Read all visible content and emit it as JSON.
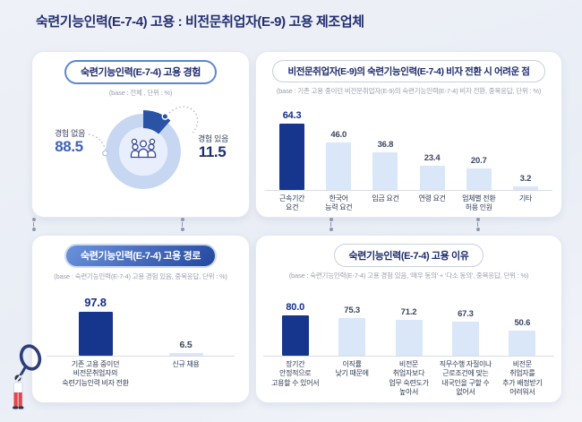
{
  "page": {
    "title": "숙련기능인력(E-7-4) 고용 : 비전문취업자(E-9) 고용 제조업체"
  },
  "colors": {
    "title_navy": "#232e70",
    "bar_highlight_navy": "#16358d",
    "bar_light_blue": "#d9e7f8",
    "donut_ring": "#c7d7f2",
    "donut_wedge": "#2a52a5",
    "value_blue": "#3f63b8",
    "value_navy": "#1c2f6e",
    "pill_gradient_start": "#6b92dc",
    "pill_gradient_end": "#24479f",
    "illustration_red": "#e0474e",
    "page_background": "#eef1f7"
  },
  "chart_data": [
    {
      "id": "employment-experience",
      "type": "pie",
      "title": "숙련기능인력(E-7-4) 고용 경험",
      "base_note": "(base : 전체 , 단위 : %)",
      "unit": "%",
      "legend_position": "sides",
      "slices": [
        {
          "label": "경험 없음",
          "value": 88.5
        },
        {
          "label": "경험 있음",
          "value": 11.5
        }
      ]
    },
    {
      "id": "visa-transition-difficulties",
      "type": "bar",
      "title": "비전문취업자(E-9)의 숙련기능인력(E-7-4) 비자 전환 시 어려운 점",
      "base_note": "(base : 기존 고용 중이던 비전문취업자(E-9)의 숙련기능인력(E-7-4) 비자 전환, 중복응답, 단위 : %)",
      "unit": "%",
      "ylim": [
        0,
        70
      ],
      "grid": false,
      "highlight_index": 0,
      "categories": [
        "근속기간\n요건",
        "한국어\n능력 요건",
        "임금 요건",
        "연령 요건",
        "업체별 전환\n허용 인원",
        "기타"
      ],
      "values": [
        64.3,
        46.0,
        36.8,
        23.4,
        20.7,
        3.2
      ]
    },
    {
      "id": "employment-path",
      "type": "bar",
      "title": "숙련기능인력(E-7-4) 고용 경로",
      "base_note": "(base : 숙련기능인력(E-7-4) 고용 경험 있음, 중복응답, 단위 : %)",
      "unit": "%",
      "ylim": [
        0,
        100
      ],
      "grid": false,
      "highlight_index": 0,
      "categories": [
        "기존 고용 중이던\n비전문취업자의\n숙련기능인력 비자 전환",
        "신규 채용"
      ],
      "values": [
        97.8,
        6.5
      ]
    },
    {
      "id": "employment-reasons",
      "type": "bar",
      "title": "숙련기능인력(E-7-4) 고용 이유",
      "base_note": "(base : 숙련기능인력(E-7-4) 고용 경험 있음, '매우 동의' + '다소 동의', 중복응답, 단위 : %)",
      "unit": "%",
      "ylim": [
        0,
        90
      ],
      "grid": false,
      "highlight_index": 0,
      "categories": [
        "장기간\n안정적으로\n고용할 수 있어서",
        "이직률\n낮기 때문에",
        "비전문\n취업자보다\n업무 숙련도가\n높아서",
        "직무수행 자질이나\n근로조건에 맞는\n내국인을 구할 수\n없어서",
        "비전문\n취업자를\n추가 배정받기\n어려워서"
      ],
      "values": [
        80.0,
        75.3,
        71.2,
        67.3,
        50.6
      ]
    }
  ]
}
